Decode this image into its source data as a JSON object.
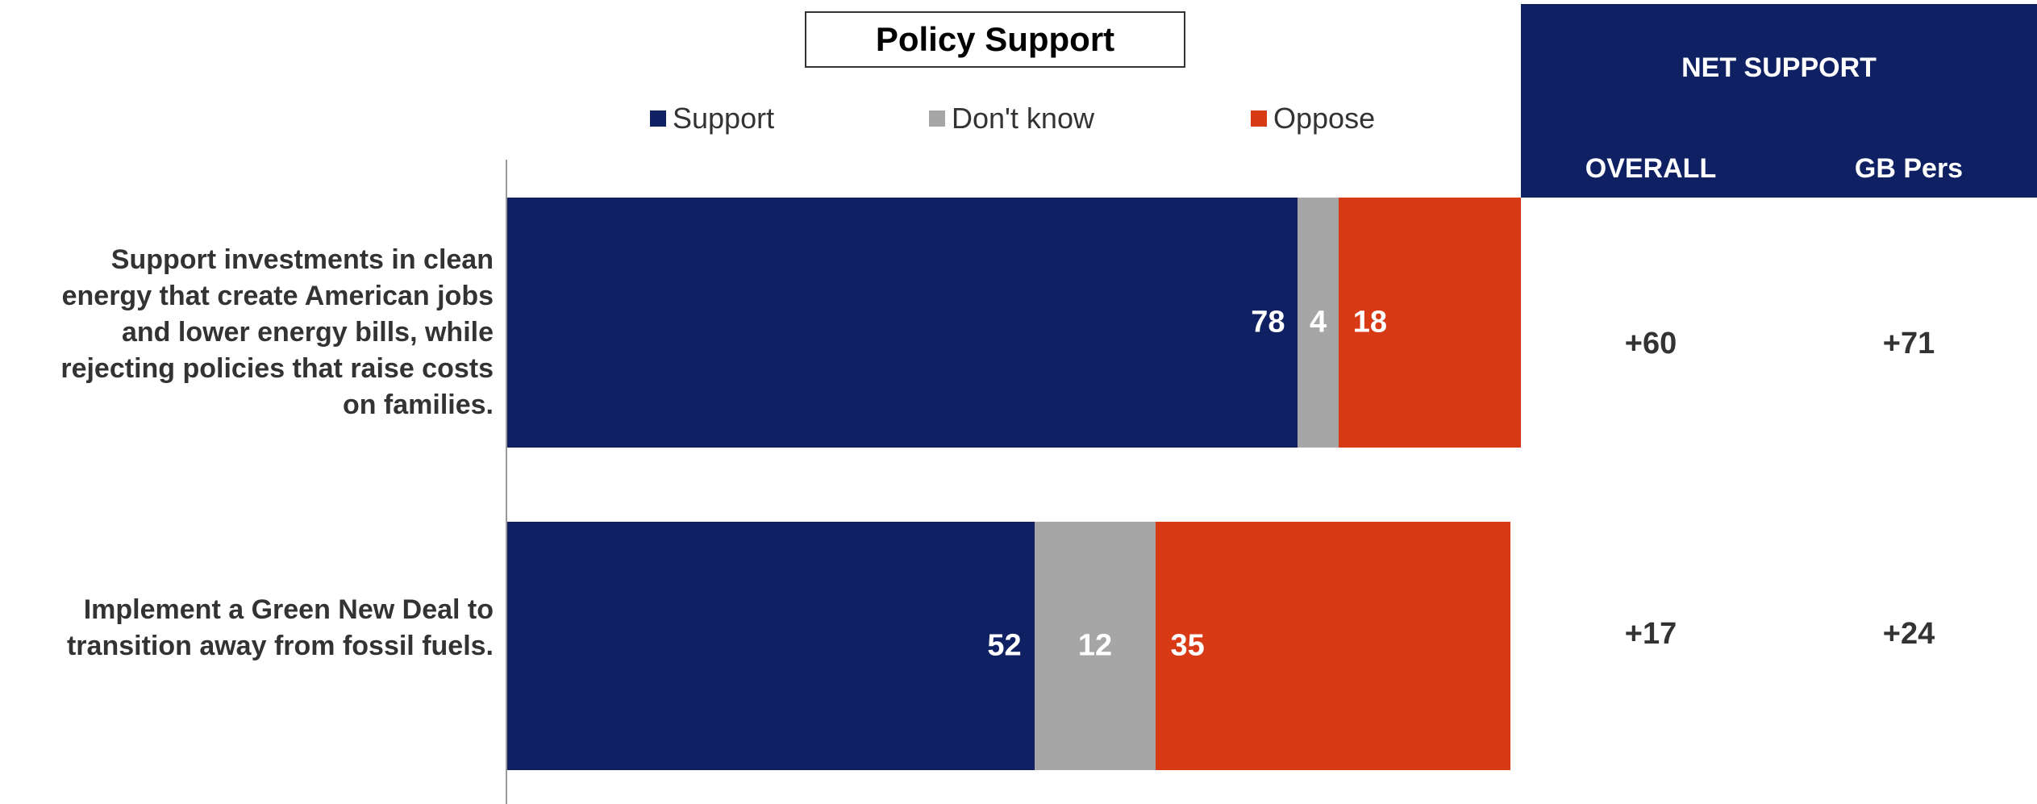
{
  "colors": {
    "support": "#0f2063",
    "dont_know": "#a6a6a6",
    "oppose": "#d83a16",
    "panel": "#0f2063"
  },
  "chart_data": {
    "type": "bar",
    "orientation": "horizontal",
    "stacked": true,
    "title": "Policy Support",
    "legend": [
      "Support",
      "Don't know",
      "Oppose"
    ],
    "legend_placement": "top",
    "categories": [
      "Support investments in clean energy that create American jobs and lower energy bills, while rejecting policies that raise costs on families.",
      "Implement a Green New Deal to transition away from fossil fuels."
    ],
    "series": [
      {
        "name": "Support",
        "values": [
          78,
          52
        ]
      },
      {
        "name": "Don't know",
        "values": [
          4,
          12
        ]
      },
      {
        "name": "Oppose",
        "values": [
          18,
          35
        ]
      }
    ],
    "xlim": [
      0,
      100
    ],
    "grid": false
  },
  "net_support": {
    "title": "NET SUPPORT",
    "columns": [
      "OVERALL",
      "GB Pers"
    ],
    "rows": [
      [
        "+60",
        "+71"
      ],
      [
        "+17",
        "+24"
      ]
    ]
  },
  "label_lines": [
    [
      "Support investments in clean",
      "energy that create American jobs",
      "and lower energy bills, while",
      "rejecting policies that raise costs",
      "on families."
    ],
    [
      "Implement a Green New Deal to",
      "transition away from fossil fuels."
    ]
  ]
}
